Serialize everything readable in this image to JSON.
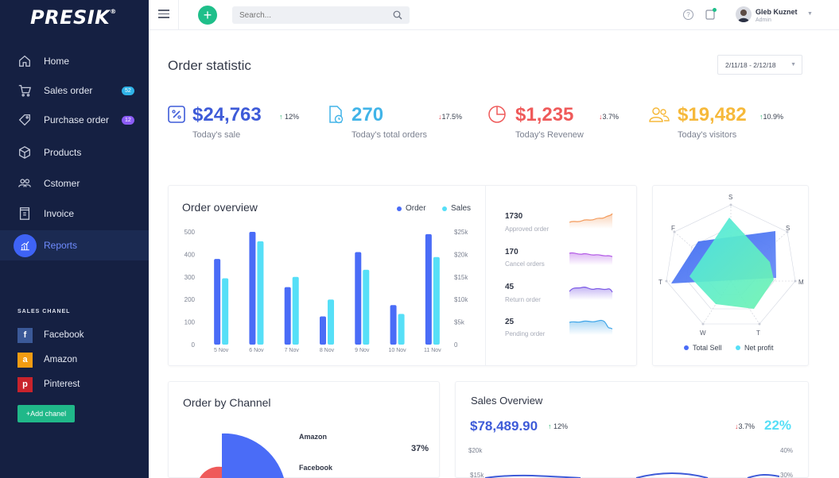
{
  "logo": "PRESIK",
  "logo_mark": "®",
  "sidebar": {
    "items": [
      {
        "label": "Home",
        "icon": "home-icon"
      },
      {
        "label": "Sales order",
        "icon": "cart-icon",
        "badge": "52",
        "badge_color": "#2fb3e8"
      },
      {
        "label": "Purchase order",
        "icon": "tag-icon",
        "badge": "12",
        "badge_color": "#8b5cf6"
      },
      {
        "label": "Products",
        "icon": "box-icon"
      },
      {
        "label": "Cstomer",
        "icon": "users-icon"
      },
      {
        "label": "Invoice",
        "icon": "invoice-icon"
      },
      {
        "label": "Reports",
        "icon": "reports-icon",
        "active": true
      }
    ],
    "sales_chanel_title": "SALES CHANEL",
    "channels": [
      {
        "label": "Facebook",
        "glyph": "f",
        "color": "#3b5998"
      },
      {
        "label": "Amazon",
        "glyph": "a",
        "color": "#f39c12"
      },
      {
        "label": "Pinterest",
        "glyph": "p",
        "color": "#c8232c"
      }
    ],
    "add_chanel": "+Add chanel"
  },
  "topbar": {
    "search_placeholder": "Search...",
    "user_name": "Gleb Kuznet",
    "user_role": "Admin",
    "help_glyph": "?"
  },
  "page_title": "Order statistic",
  "date_range": "2/11/18 - 2/12/18",
  "stats": [
    {
      "value": "$24,763",
      "change": "12%",
      "direction": "up",
      "label": "Today's sale",
      "color": "#3e5bd8",
      "icon": "percent-icon"
    },
    {
      "value": "270",
      "change": "17.5%",
      "direction": "down",
      "label": "Today's total orders",
      "color": "#41b4e8",
      "icon": "file-icon"
    },
    {
      "value": "$1,235",
      "change": "3.7%",
      "direction": "down",
      "label": "Today's Revenew",
      "color": "#ef5a5a",
      "icon": "pie-icon"
    },
    {
      "value": "$19,482",
      "change": "10.9%",
      "direction": "up",
      "label": "Today's visitors",
      "color": "#f6b93b",
      "icon": "visitors-icon"
    }
  ],
  "order_overview": {
    "title": "Order overview",
    "legend": [
      {
        "label": "Order",
        "color": "#4a6cf7"
      },
      {
        "label": "Sales",
        "color": "#56dff7"
      }
    ]
  },
  "chart_data": [
    {
      "type": "bar",
      "categories": [
        "5 Nov",
        "6 Nov",
        "7 Nov",
        "8 Nov",
        "9 Nov",
        "10 Nov",
        "11 Nov"
      ],
      "series": [
        {
          "name": "Order",
          "values": [
            380,
            500,
            255,
            125,
            410,
            175,
            490
          ]
        },
        {
          "name": "Sales",
          "values": [
            14700,
            22900,
            15000,
            10000,
            16600,
            6800,
            19400
          ]
        }
      ],
      "y_left_ticks": [
        "0",
        "100",
        "200",
        "300",
        "400",
        "500"
      ],
      "y_right_ticks": [
        "0",
        "$5k",
        "$10k",
        "$15k",
        "$20k",
        "$25k"
      ],
      "ylim_left": [
        0,
        500
      ],
      "ylim_right": [
        0,
        25000
      ],
      "title": "Order overview"
    }
  ],
  "mini_stats": [
    {
      "value": "1730",
      "label": "Approved order",
      "color": "#f39a5b"
    },
    {
      "value": "170",
      "label": "Cancel orders",
      "color": "#b35be6"
    },
    {
      "value": "45",
      "label": "Return order",
      "color": "#7d5be6"
    },
    {
      "value": "25",
      "label": "Pending order",
      "color": "#3fa5e8"
    }
  ],
  "radar": {
    "axes": [
      "S",
      "S",
      "M",
      "T",
      "W",
      "T",
      "F"
    ],
    "legend": [
      {
        "label": "Total Sell",
        "color": "#4a6cf7"
      },
      {
        "label": "Net profit",
        "color": "#56dff7"
      }
    ]
  },
  "order_by_channel": {
    "title": "Order by Channel",
    "items": [
      {
        "label": "Amazon",
        "percent": "37%"
      },
      {
        "label": "Facebook",
        "percent": ""
      }
    ],
    "colors": [
      "#4a6cf7",
      "#ef5a5a"
    ]
  },
  "sales_overview": {
    "title": "Sales Overview",
    "value": "$78,489.90",
    "change_up": "12%",
    "change_down": "3.7%",
    "percent": "22%",
    "y_ticks_left": [
      "$20k",
      "$15k"
    ],
    "y_ticks_right": [
      "40%",
      "30%"
    ]
  }
}
